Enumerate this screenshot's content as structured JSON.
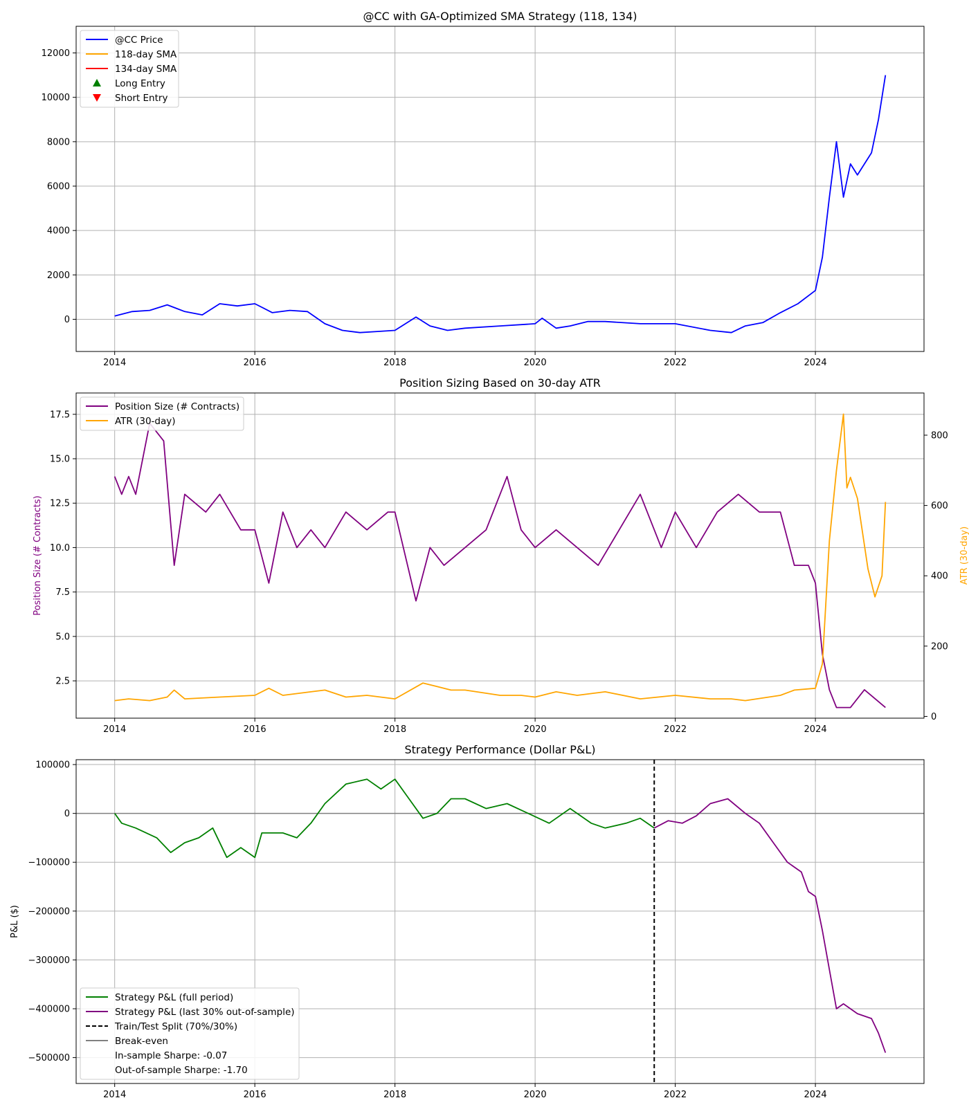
{
  "colors": {
    "price": "#0000ff",
    "sma118": "#ffa500",
    "sma134": "#ff0000",
    "long": "#008000",
    "short": "#ff0000",
    "position": "#800080",
    "atr": "#ffa500",
    "pnl_in": "#008000",
    "pnl_out": "#800080",
    "split": "#000000",
    "breakeven": "#808080"
  },
  "chart_data": [
    {
      "type": "line",
      "title": "@CC with GA-Optimized SMA Strategy (118, 134)",
      "xlabel": "",
      "ylabel": "",
      "xlim": [
        2013.45,
        2025.55
      ],
      "ylim": [
        -1450,
        13200
      ],
      "x_ticks": [
        2014,
        2016,
        2018,
        2020,
        2022,
        2024
      ],
      "x_tick_labels": [
        "2014",
        "2016",
        "2018",
        "2020",
        "2022",
        "2024"
      ],
      "y_ticks": [
        0,
        2000,
        4000,
        6000,
        8000,
        10000,
        12000
      ],
      "y_tick_labels": [
        "0",
        "2000",
        "4000",
        "6000",
        "8000",
        "10000",
        "12000"
      ],
      "grid": true,
      "legend_position": "upper-left",
      "legend": [
        {
          "label": "@CC Price",
          "kind": "line",
          "color": "#0000ff"
        },
        {
          "label": "118-day SMA",
          "kind": "line",
          "color": "#ffa500"
        },
        {
          "label": "134-day SMA",
          "kind": "line",
          "color": "#ff0000"
        },
        {
          "label": "Long Entry",
          "kind": "triangle-up",
          "color": "#008000"
        },
        {
          "label": "Short Entry",
          "kind": "triangle-down",
          "color": "#ff0000"
        }
      ],
      "series": [
        {
          "name": "@CC Price",
          "color": "#0000ff",
          "x": [
            2014.0,
            2014.25,
            2014.5,
            2014.75,
            2015.0,
            2015.25,
            2015.5,
            2015.75,
            2016.0,
            2016.25,
            2016.5,
            2016.75,
            2017.0,
            2017.25,
            2017.5,
            2017.75,
            2018.0,
            2018.3,
            2018.5,
            2018.75,
            2019.0,
            2019.5,
            2020.0,
            2020.1,
            2020.3,
            2020.5,
            2020.75,
            2021.0,
            2021.5,
            2022.0,
            2022.5,
            2022.8,
            2023.0,
            2023.25,
            2023.5,
            2023.75,
            2024.0,
            2024.1,
            2024.2,
            2024.3,
            2024.4,
            2024.5,
            2024.6,
            2024.8,
            2024.9,
            2025.0
          ],
          "y": [
            150,
            350,
            400,
            650,
            350,
            200,
            700,
            600,
            700,
            300,
            400,
            350,
            -200,
            -500,
            -600,
            -550,
            -500,
            100,
            -300,
            -500,
            -400,
            -300,
            -200,
            50,
            -400,
            -300,
            -100,
            -100,
            -200,
            -200,
            -500,
            -600,
            -300,
            -150,
            300,
            700,
            1300,
            2800,
            5500,
            8000,
            5500,
            7000,
            6500,
            7500,
            9000,
            11000
          ]
        }
      ]
    },
    {
      "type": "line",
      "title": "Position Sizing Based on 30-day ATR",
      "xlabel": "",
      "ylabel": "Position Size (# Contracts)",
      "ylabel_right": "ATR (30-day)",
      "xlim": [
        2013.45,
        2025.55
      ],
      "ylim": [
        0.4,
        18.7
      ],
      "ylim_right": [
        -5,
        920
      ],
      "x_ticks": [
        2014,
        2016,
        2018,
        2020,
        2022,
        2024
      ],
      "x_tick_labels": [
        "2014",
        "2016",
        "2018",
        "2020",
        "2022",
        "2024"
      ],
      "y_ticks": [
        2.5,
        5.0,
        7.5,
        10.0,
        12.5,
        15.0,
        17.5
      ],
      "y_tick_labels": [
        "2.5",
        "5.0",
        "7.5",
        "10.0",
        "12.5",
        "15.0",
        "17.5"
      ],
      "y_ticks_right": [
        0,
        200,
        400,
        600,
        800
      ],
      "y_tick_labels_right": [
        "0",
        "200",
        "400",
        "600",
        "800"
      ],
      "grid": true,
      "legend_position": "upper-left",
      "legend": [
        {
          "label": "Position Size (# Contracts)",
          "kind": "line",
          "color": "#800080"
        },
        {
          "label": "ATR (30-day)",
          "kind": "line",
          "color": "#ffa500"
        }
      ],
      "series": [
        {
          "name": "Position Size (# Contracts)",
          "color": "#800080",
          "axis": "left",
          "x": [
            2014.0,
            2014.1,
            2014.2,
            2014.3,
            2014.5,
            2014.7,
            2014.85,
            2015.0,
            2015.3,
            2015.5,
            2015.8,
            2016.0,
            2016.2,
            2016.4,
            2016.6,
            2016.8,
            2017.0,
            2017.3,
            2017.6,
            2017.9,
            2018.0,
            2018.3,
            2018.5,
            2018.7,
            2019.0,
            2019.3,
            2019.6,
            2019.8,
            2020.0,
            2020.3,
            2020.6,
            2020.9,
            2021.2,
            2021.5,
            2021.8,
            2022.0,
            2022.3,
            2022.6,
            2022.9,
            2023.2,
            2023.5,
            2023.7,
            2023.9,
            2024.0,
            2024.1,
            2024.2,
            2024.3,
            2024.5,
            2024.7,
            2025.0
          ],
          "y": [
            14,
            13,
            14,
            13,
            17,
            16,
            9,
            13,
            12,
            13,
            11,
            11,
            8,
            12,
            10,
            11,
            10,
            12,
            11,
            12,
            12,
            7,
            10,
            9,
            10,
            11,
            14,
            11,
            10,
            11,
            10,
            9,
            11,
            13,
            10,
            12,
            10,
            12,
            13,
            12,
            12,
            9,
            9,
            8,
            4,
            2,
            1,
            1,
            2,
            1
          ]
        },
        {
          "name": "ATR (30-day)",
          "color": "#ffa500",
          "axis": "right",
          "x": [
            2014.0,
            2014.2,
            2014.5,
            2014.75,
            2014.85,
            2015.0,
            2015.5,
            2016.0,
            2016.2,
            2016.4,
            2016.8,
            2017.0,
            2017.3,
            2017.6,
            2018.0,
            2018.4,
            2018.6,
            2018.8,
            2019.0,
            2019.5,
            2019.8,
            2020.0,
            2020.3,
            2020.6,
            2021.0,
            2021.5,
            2022.0,
            2022.5,
            2022.8,
            2023.0,
            2023.5,
            2023.7,
            2024.0,
            2024.1,
            2024.2,
            2024.3,
            2024.4,
            2024.45,
            2024.5,
            2024.6,
            2024.75,
            2024.85,
            2024.95,
            2025.0
          ],
          "y": [
            45,
            50,
            45,
            55,
            75,
            50,
            55,
            60,
            80,
            60,
            70,
            75,
            55,
            60,
            50,
            95,
            85,
            75,
            75,
            60,
            60,
            55,
            70,
            60,
            70,
            50,
            60,
            50,
            50,
            45,
            60,
            75,
            80,
            150,
            500,
            700,
            860,
            650,
            680,
            620,
            420,
            340,
            400,
            610
          ]
        }
      ]
    },
    {
      "type": "line",
      "title": "Strategy Performance (Dollar P&L)",
      "xlabel": "",
      "ylabel": "P&L ($)",
      "xlim": [
        2013.45,
        2025.55
      ],
      "ylim": [
        -553000,
        110000
      ],
      "x_ticks": [
        2014,
        2016,
        2018,
        2020,
        2022,
        2024
      ],
      "x_tick_labels": [
        "2014",
        "2016",
        "2018",
        "2020",
        "2022",
        "2024"
      ],
      "y_ticks": [
        -500000,
        -400000,
        -300000,
        -200000,
        -100000,
        0,
        100000
      ],
      "y_tick_labels": [
        "−500000",
        "−400000",
        "−300000",
        "−200000",
        "−100000",
        "0",
        "100000"
      ],
      "grid": true,
      "legend_position": "lower-left",
      "legend": [
        {
          "label": "Strategy P&L (full period)",
          "kind": "line",
          "color": "#008000"
        },
        {
          "label": "Strategy P&L (last 30% out-of-sample)",
          "kind": "line",
          "color": "#800080"
        },
        {
          "label": "Train/Test Split (70%/30%)",
          "kind": "dashed",
          "color": "#000000"
        },
        {
          "label": "Break-even",
          "kind": "line",
          "color": "#808080"
        },
        {
          "label": "In-sample Sharpe: -0.07",
          "kind": "none",
          "color": ""
        },
        {
          "label": "Out-of-sample Sharpe: -1.70",
          "kind": "none",
          "color": ""
        }
      ],
      "split_x": 2021.7,
      "breakeven_y": 0,
      "series": [
        {
          "name": "Strategy P&L (full period)",
          "color": "#008000",
          "x": [
            2014.0,
            2014.1,
            2014.3,
            2014.6,
            2014.8,
            2015.0,
            2015.2,
            2015.4,
            2015.6,
            2015.8,
            2016.0,
            2016.1,
            2016.4,
            2016.6,
            2016.8,
            2017.0,
            2017.3,
            2017.6,
            2017.8,
            2018.0,
            2018.2,
            2018.4,
            2018.6,
            2018.8,
            2019.0,
            2019.3,
            2019.6,
            2019.9,
            2020.2,
            2020.5,
            2020.8,
            2021.0,
            2021.3,
            2021.5,
            2021.7
          ],
          "y": [
            0,
            -20000,
            -30000,
            -50000,
            -80000,
            -60000,
            -50000,
            -30000,
            -90000,
            -70000,
            -90000,
            -40000,
            -40000,
            -50000,
            -20000,
            20000,
            60000,
            70000,
            50000,
            70000,
            30000,
            -10000,
            0,
            30000,
            30000,
            10000,
            20000,
            0,
            -20000,
            10000,
            -20000,
            -30000,
            -20000,
            -10000,
            -30000
          ]
        },
        {
          "name": "Strategy P&L (last 30% out-of-sample)",
          "color": "#800080",
          "x": [
            2021.7,
            2021.9,
            2022.1,
            2022.3,
            2022.5,
            2022.75,
            2023.0,
            2023.2,
            2023.4,
            2023.6,
            2023.8,
            2023.9,
            2024.0,
            2024.1,
            2024.2,
            2024.3,
            2024.4,
            2024.6,
            2024.8,
            2024.9,
            2025.0
          ],
          "y": [
            -30000,
            -15000,
            -20000,
            -5000,
            20000,
            30000,
            0,
            -20000,
            -60000,
            -100000,
            -120000,
            -160000,
            -170000,
            -240000,
            -320000,
            -400000,
            -390000,
            -410000,
            -420000,
            -450000,
            -490000
          ]
        }
      ]
    }
  ]
}
